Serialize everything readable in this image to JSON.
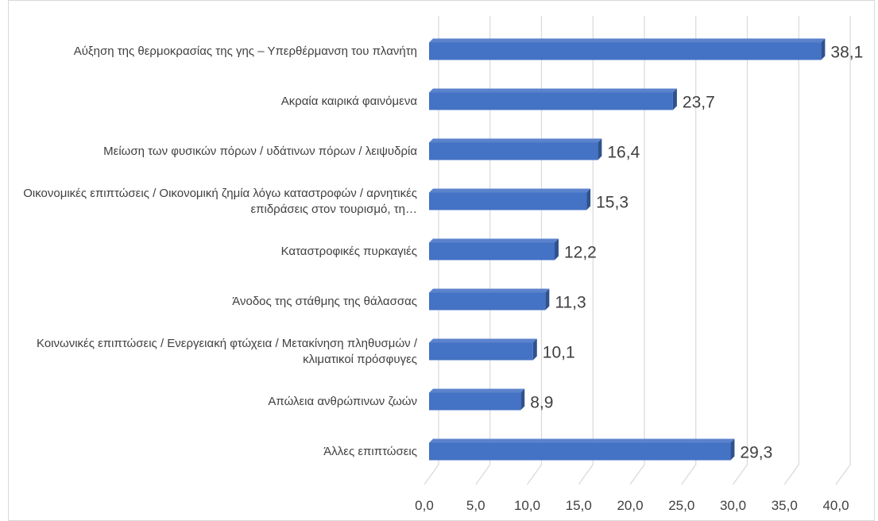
{
  "chart_data": {
    "type": "bar",
    "orientation": "horizontal",
    "categories": [
      "Αύξηση της θερμοκρασίας της γης – Υπερθέρμανση του πλανήτη",
      "Ακραία καιρικά φαινόμενα",
      "Μείωση των φυσικών πόρων / υδάτινων πόρων / λειψυδρία",
      "Οικονομικές επιπτώσεις / Οικονομική ζημία λόγω καταστροφών / αρνητικές επιδράσεις στον τουρισμό, τη…",
      "Καταστροφικές πυρκαγιές",
      "Άνοδος της στάθμης της θάλασσας",
      "Κοινωνικές επιπτώσεις / Ενεργειακή φτώχεια / Μετακίνηση πληθυσμών / κλιματικοί πρόσφυγες",
      "Απώλεια ανθρώπινων ζωών",
      "Άλλες επιπτώσεις"
    ],
    "values": [
      38.1,
      23.7,
      16.4,
      15.3,
      12.2,
      11.3,
      10.1,
      8.9,
      29.3
    ],
    "value_labels": [
      "38,1",
      "23,7",
      "16,4",
      "15,3",
      "12,2",
      "11,3",
      "10,1",
      "8,9",
      "29,3"
    ],
    "color": "#4472c4",
    "xlim": [
      0,
      40
    ],
    "xticks": [
      {
        "value": 0,
        "label": "0,0"
      },
      {
        "value": 5,
        "label": "5,0"
      },
      {
        "value": 10,
        "label": "10,0"
      },
      {
        "value": 15,
        "label": "15,0"
      },
      {
        "value": 20,
        "label": "20,0"
      },
      {
        "value": 25,
        "label": "25,0"
      },
      {
        "value": 30,
        "label": "30,0"
      },
      {
        "value": 35,
        "label": "35,0"
      },
      {
        "value": 40,
        "label": "40,0"
      }
    ],
    "grid": true
  }
}
